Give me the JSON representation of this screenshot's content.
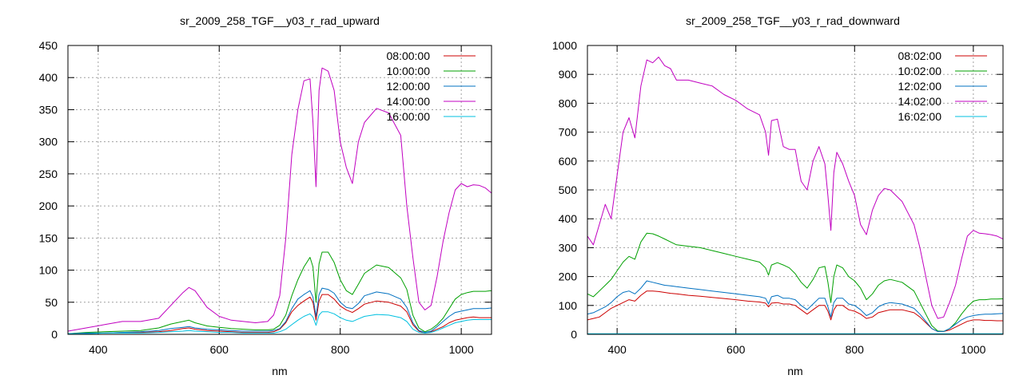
{
  "chart_data": [
    {
      "type": "line",
      "title": "sr_2009_258_TGF__y03_r_rad_upward",
      "xlabel": "nm",
      "ylabel": "",
      "xlim": [
        350,
        1050
      ],
      "ylim": [
        0,
        450
      ],
      "xticks": [
        400,
        600,
        800,
        1000
      ],
      "yticks": [
        0,
        50,
        100,
        150,
        200,
        250,
        300,
        350,
        400,
        450
      ],
      "grid": true,
      "legend_position": "top-right",
      "x": [
        350,
        380,
        410,
        440,
        470,
        500,
        520,
        540,
        550,
        560,
        580,
        600,
        620,
        640,
        660,
        680,
        690,
        700,
        710,
        720,
        730,
        740,
        750,
        755,
        760,
        765,
        770,
        780,
        790,
        800,
        810,
        820,
        830,
        840,
        860,
        880,
        900,
        910,
        920,
        930,
        940,
        950,
        960,
        970,
        980,
        990,
        1000,
        1010,
        1020,
        1030,
        1040,
        1050
      ],
      "series": [
        {
          "name": "08:00:00",
          "color": "#cc0000",
          "values": [
            1,
            2,
            2,
            3,
            3,
            4,
            6,
            9,
            10,
            8,
            6,
            5,
            4,
            3,
            3,
            3,
            4,
            8,
            18,
            35,
            45,
            52,
            58,
            50,
            22,
            52,
            62,
            62,
            55,
            44,
            38,
            34,
            40,
            47,
            52,
            50,
            44,
            35,
            15,
            5,
            2,
            4,
            8,
            12,
            18,
            22,
            24,
            26,
            27,
            26,
            26,
            26
          ]
        },
        {
          "name": "10:00:00",
          "color": "#00a000",
          "values": [
            1,
            3,
            4,
            5,
            6,
            10,
            16,
            20,
            22,
            18,
            13,
            11,
            9,
            8,
            7,
            7,
            8,
            14,
            30,
            60,
            85,
            105,
            120,
            105,
            50,
            110,
            128,
            128,
            112,
            85,
            68,
            62,
            78,
            95,
            108,
            104,
            88,
            70,
            30,
            10,
            4,
            8,
            15,
            25,
            40,
            55,
            62,
            65,
            67,
            67,
            67,
            68
          ]
        },
        {
          "name": "12:00:00",
          "color": "#0070c0",
          "values": [
            1,
            2,
            2,
            3,
            4,
            6,
            9,
            11,
            12,
            10,
            8,
            7,
            6,
            5,
            5,
            5,
            6,
            9,
            20,
            40,
            55,
            62,
            68,
            58,
            28,
            62,
            72,
            70,
            64,
            50,
            42,
            40,
            48,
            60,
            66,
            63,
            55,
            42,
            18,
            6,
            3,
            5,
            12,
            20,
            28,
            34,
            36,
            38,
            40,
            40,
            40,
            41
          ]
        },
        {
          "name": "14:00:00",
          "color": "#c000c0",
          "values": [
            5,
            10,
            15,
            20,
            20,
            25,
            45,
            65,
            73,
            68,
            42,
            28,
            22,
            20,
            18,
            20,
            30,
            60,
            150,
            280,
            350,
            395,
            398,
            330,
            230,
            380,
            415,
            410,
            380,
            300,
            260,
            235,
            300,
            330,
            352,
            345,
            310,
            200,
            120,
            50,
            38,
            45,
            90,
            145,
            190,
            225,
            235,
            230,
            233,
            232,
            228,
            220
          ]
        },
        {
          "name": "16:00:00",
          "color": "#00c0e0",
          "values": [
            1,
            1,
            2,
            2,
            2,
            3,
            4,
            5,
            6,
            5,
            4,
            3,
            3,
            2,
            2,
            2,
            2,
            4,
            8,
            15,
            22,
            28,
            32,
            27,
            14,
            30,
            35,
            35,
            32,
            26,
            22,
            20,
            24,
            28,
            31,
            30,
            26,
            20,
            8,
            3,
            2,
            3,
            6,
            10,
            14,
            18,
            20,
            22,
            23,
            23,
            23,
            23
          ]
        }
      ]
    },
    {
      "type": "line",
      "title": "sr_2009_258_TGF__y03_r_rad_downward",
      "xlabel": "nm",
      "ylabel": "",
      "xlim": [
        350,
        1050
      ],
      "ylim": [
        0,
        1000
      ],
      "xticks": [
        400,
        600,
        800,
        1000
      ],
      "yticks": [
        0,
        100,
        200,
        300,
        400,
        500,
        600,
        700,
        800,
        900,
        1000
      ],
      "grid": true,
      "legend_position": "top-right",
      "x": [
        350,
        360,
        370,
        380,
        390,
        400,
        410,
        420,
        430,
        440,
        450,
        460,
        470,
        480,
        490,
        500,
        520,
        540,
        560,
        580,
        600,
        620,
        640,
        650,
        655,
        660,
        670,
        680,
        690,
        700,
        710,
        720,
        730,
        740,
        750,
        755,
        760,
        765,
        770,
        780,
        790,
        800,
        810,
        820,
        830,
        840,
        850,
        860,
        880,
        900,
        910,
        920,
        930,
        940,
        950,
        960,
        970,
        980,
        990,
        1000,
        1010,
        1020,
        1030,
        1040,
        1050
      ],
      "series": [
        {
          "name": "08:02:00",
          "color": "#cc0000",
          "values": [
            50,
            55,
            60,
            75,
            90,
            100,
            110,
            120,
            115,
            135,
            150,
            150,
            148,
            145,
            142,
            140,
            135,
            132,
            128,
            124,
            120,
            115,
            112,
            108,
            95,
            108,
            110,
            105,
            105,
            100,
            85,
            70,
            85,
            100,
            100,
            80,
            50,
            85,
            100,
            100,
            85,
            80,
            70,
            55,
            60,
            75,
            80,
            85,
            85,
            75,
            60,
            40,
            20,
            10,
            10,
            15,
            25,
            35,
            45,
            50,
            50,
            48,
            48,
            47,
            47
          ]
        },
        {
          "name": "10:02:00",
          "color": "#00a000",
          "values": [
            140,
            130,
            150,
            170,
            190,
            220,
            250,
            270,
            260,
            320,
            350,
            348,
            340,
            330,
            320,
            310,
            305,
            300,
            290,
            280,
            270,
            260,
            250,
            230,
            205,
            240,
            248,
            240,
            230,
            210,
            180,
            160,
            190,
            230,
            235,
            180,
            110,
            200,
            240,
            230,
            200,
            185,
            160,
            120,
            140,
            170,
            185,
            190,
            180,
            150,
            110,
            70,
            30,
            12,
            10,
            20,
            40,
            70,
            95,
            115,
            120,
            120,
            122,
            122,
            123
          ]
        },
        {
          "name": "12:02:00",
          "color": "#0070c0",
          "values": [
            70,
            75,
            85,
            95,
            110,
            130,
            145,
            150,
            140,
            160,
            185,
            180,
            175,
            170,
            168,
            165,
            160,
            155,
            150,
            145,
            140,
            135,
            130,
            125,
            105,
            130,
            135,
            125,
            125,
            120,
            100,
            85,
            105,
            125,
            125,
            95,
            60,
            110,
            125,
            125,
            105,
            100,
            85,
            65,
            75,
            95,
            105,
            110,
            105,
            90,
            70,
            45,
            20,
            10,
            10,
            20,
            35,
            50,
            60,
            65,
            68,
            70,
            70,
            71,
            72
          ]
        },
        {
          "name": "14:02:00",
          "color": "#c000c0",
          "values": [
            340,
            310,
            380,
            450,
            400,
            550,
            700,
            750,
            680,
            860,
            950,
            940,
            960,
            930,
            920,
            880,
            880,
            870,
            860,
            830,
            810,
            780,
            760,
            700,
            620,
            740,
            745,
            650,
            640,
            640,
            530,
            500,
            600,
            650,
            590,
            480,
            360,
            560,
            630,
            590,
            530,
            480,
            380,
            345,
            430,
            480,
            505,
            500,
            460,
            380,
            300,
            200,
            100,
            55,
            60,
            110,
            170,
            260,
            340,
            360,
            350,
            348,
            345,
            340,
            330
          ]
        },
        {
          "name": "16:02:00",
          "color": "#00c0e0",
          "values": [
            2,
            2,
            2,
            2,
            2,
            2,
            2,
            2,
            2,
            2,
            2,
            2,
            2,
            2,
            2,
            2,
            2,
            2,
            2,
            2,
            2,
            2,
            2,
            2,
            2,
            2,
            2,
            2,
            2,
            2,
            2,
            2,
            2,
            2,
            2,
            2,
            2,
            2,
            2,
            2,
            2,
            2,
            2,
            2,
            2,
            2,
            2,
            2,
            2,
            2,
            2,
            2,
            2,
            2,
            2,
            2,
            2,
            2,
            2,
            2,
            2,
            2,
            2,
            2,
            2
          ]
        }
      ]
    }
  ]
}
